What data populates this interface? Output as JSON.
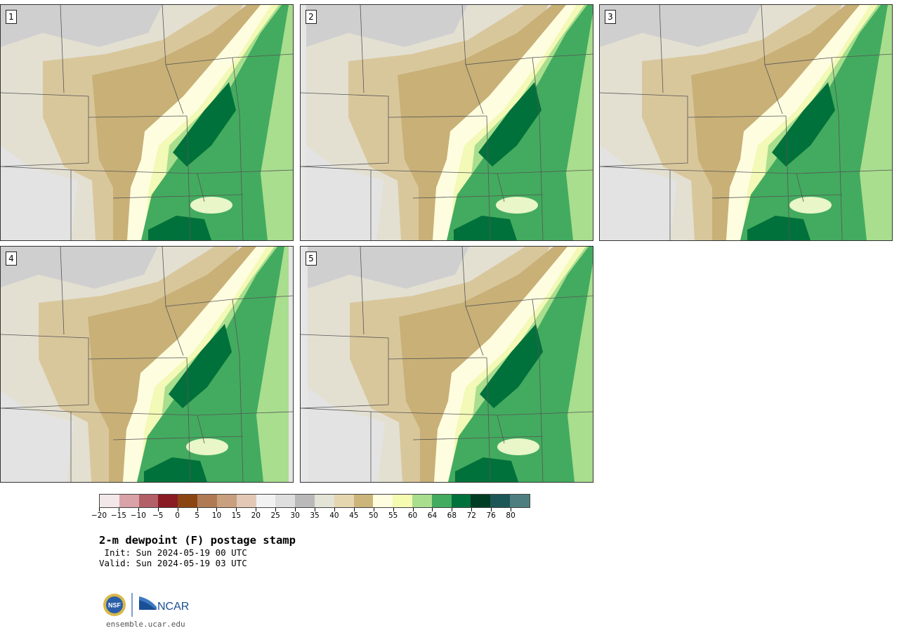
{
  "panels": [
    {
      "label": "1"
    },
    {
      "label": "2"
    },
    {
      "label": "3"
    },
    {
      "label": "4"
    },
    {
      "label": "5"
    }
  ],
  "colorbar": {
    "colors": [
      "#f2e7e9",
      "#d9a2a8",
      "#b35f68",
      "#8a1a24",
      "#8b4513",
      "#b07a55",
      "#c8a07f",
      "#e3c9b5",
      "#f2f2f2",
      "#dedede",
      "#b9b9b9",
      "#e3e3d6",
      "#e6d6b0",
      "#ccb57a",
      "#fffde0",
      "#f5fbb0",
      "#a8de8e",
      "#43ab5f",
      "#00713b",
      "#003d24",
      "#1d5656",
      "#4e7e80"
    ],
    "tick_labels": [
      "−20",
      "−15",
      "−10",
      "−5",
      "0",
      "5",
      "10",
      "15",
      "20",
      "25",
      "30",
      "35",
      "40",
      "45",
      "50",
      "55",
      "60",
      "64",
      "68",
      "72",
      "76",
      "80"
    ]
  },
  "title": "2-m dewpoint (F) postage stamp",
  "init": " Init: Sun 2024-05-19 00 UTC",
  "valid": "Valid: Sun 2024-05-19 03 UTC",
  "logo": {
    "left": "NSF",
    "right": "NCAR"
  },
  "site": "ensemble.ucar.edu"
}
